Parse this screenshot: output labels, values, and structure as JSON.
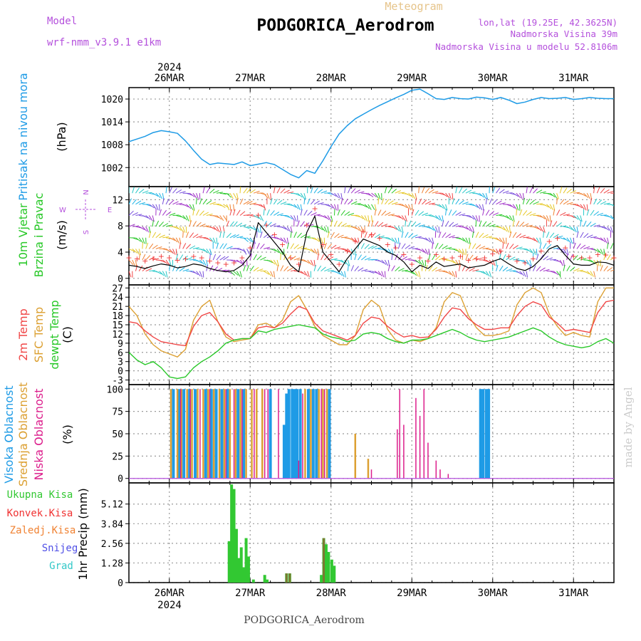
{
  "header": {
    "title_top": "Meteogram",
    "station": "PODGORICA_Aerodrom",
    "model_label": "Model",
    "model_name": "wrf-nmm_v3.9.1 e1km",
    "lonlat": "lon,lat (19.25E, 42.3625N)",
    "altitude": "Nadmorska Visina 39m",
    "model_altitude": "Nadmorska Visina u modelu 52.8106m",
    "watermark": "made by Angel",
    "footer_station": "PODGORICA_Aerodrom"
  },
  "colors": {
    "pressure": "#1e9be6",
    "temp2m": "#f04646",
    "sfc": "#dca032",
    "dewpt": "#28c828",
    "high_cloud": "#1e9be6",
    "mid_cloud": "#dca032",
    "low_cloud": "#dc1e8c",
    "total_precip": "#32c832",
    "conv_precip": "#f03232",
    "strat_precip": "#f08232",
    "snow": "#5050e6",
    "hail": "#32c8c8",
    "wind_label": "#28c828",
    "compass": "#b450dc"
  },
  "chart_data": [
    {
      "type": "line",
      "panel": "pressure",
      "ylabel": [
        "Pritisak na nivou mora",
        "(hPa)"
      ],
      "ylim": [
        997,
        1023
      ],
      "yticks": [
        1002,
        1008,
        1014,
        1020
      ],
      "x_unit": "days from 26MAR 00 UTC",
      "series": [
        {
          "x": [
            -0.5,
            -0.4,
            -0.3,
            -0.2,
            -0.1,
            0.0,
            0.1,
            0.2,
            0.3,
            0.4,
            0.5,
            0.6,
            0.7,
            0.8,
            0.9,
            1.0,
            1.1,
            1.2,
            1.3,
            1.4,
            1.5,
            1.6,
            1.7,
            1.8,
            1.9,
            2.0,
            2.1,
            2.2,
            2.3,
            2.4,
            2.5,
            2.6,
            2.7,
            2.8,
            2.9,
            3.0,
            3.1,
            3.2,
            3.3,
            3.4,
            3.5,
            3.6,
            3.7,
            3.8,
            3.9,
            4.0,
            4.1,
            4.2,
            4.3,
            4.4,
            4.5,
            4.6,
            4.7,
            4.8,
            4.9,
            5.0,
            5.1,
            5.2,
            5.3,
            5.4,
            5.5
          ],
          "values": [
            1008.8,
            1009.5,
            1010.2,
            1011.2,
            1011.7,
            1011.4,
            1011.0,
            1009.0,
            1006.5,
            1004.2,
            1002.8,
            1003.2,
            1003.0,
            1002.8,
            1003.5,
            1002.5,
            1002.9,
            1003.3,
            1002.8,
            1001.5,
            1000.2,
            999.3,
            1001.2,
            1000.5,
            1003.8,
            1007.5,
            1010.8,
            1013.0,
            1014.8,
            1016.0,
            1017.2,
            1018.3,
            1019.3,
            1020.3,
            1021.2,
            1022.3,
            1022.6,
            1021.4,
            1020.1,
            1019.9,
            1020.4,
            1020.1,
            1020.0,
            1020.5,
            1020.3,
            1019.9,
            1020.4,
            1019.7,
            1018.8,
            1019.2,
            1019.9,
            1020.4,
            1020.1,
            1020.2,
            1020.4,
            1019.9,
            1020.1,
            1020.4,
            1020.2,
            1020.1,
            1020.1
          ]
        }
      ]
    },
    {
      "type": "line",
      "panel": "wind",
      "ylabel": [
        "10m Vjetar",
        "Brzina i Pravac",
        "(m/s)"
      ],
      "compass": {
        "n": "N",
        "s": "S",
        "w": "W",
        "e": "E"
      },
      "ylim": [
        -1,
        14
      ],
      "yticks": [
        0,
        4,
        8,
        12
      ],
      "series": [
        {
          "name": "speed",
          "x": [
            -0.5,
            -0.4,
            -0.3,
            -0.2,
            -0.1,
            0.0,
            0.1,
            0.2,
            0.3,
            0.4,
            0.5,
            0.6,
            0.7,
            0.8,
            0.9,
            1.0,
            1.1,
            1.2,
            1.3,
            1.4,
            1.5,
            1.6,
            1.7,
            1.8,
            1.9,
            2.0,
            2.1,
            2.2,
            2.3,
            2.4,
            2.5,
            2.6,
            2.7,
            2.8,
            2.9,
            3.0,
            3.1,
            3.2,
            3.3,
            3.4,
            3.5,
            3.6,
            3.7,
            3.8,
            3.9,
            4.0,
            4.1,
            4.2,
            4.3,
            4.4,
            4.5,
            4.6,
            4.7,
            4.8,
            4.9,
            5.0,
            5.1,
            5.2,
            5.3,
            5.4,
            5.5
          ],
          "values": [
            2.0,
            1.8,
            1.5,
            1.9,
            2.2,
            2.0,
            1.6,
            1.8,
            2.2,
            2.0,
            1.5,
            1.2,
            1.0,
            1.2,
            2.0,
            3.5,
            8.5,
            7.0,
            5.5,
            4.0,
            2.0,
            1.0,
            7.0,
            9.5,
            4.0,
            2.5,
            1.0,
            3.0,
            4.5,
            6.0,
            5.5,
            5.0,
            4.0,
            3.5,
            2.5,
            1.0,
            2.0,
            1.5,
            2.5,
            1.8,
            2.0,
            2.2,
            1.6,
            1.8,
            2.0,
            2.6,
            3.0,
            2.2,
            1.5,
            1.2,
            1.8,
            3.0,
            4.5,
            5.0,
            3.5,
            2.2,
            2.0,
            2.0,
            2.5,
            2.4,
            2.0
          ]
        }
      ]
    },
    {
      "type": "line",
      "panel": "temperature",
      "ylabel": [
        "2m Temp",
        "SFC Temp",
        "dewpt Temp",
        "(C)"
      ],
      "ylim": [
        -4.5,
        28
      ],
      "yticks": [
        -3,
        0,
        3,
        6,
        9,
        12,
        15,
        18,
        21,
        24,
        27
      ],
      "series": [
        {
          "name": "2m Temp",
          "x": [
            -0.5,
            -0.4,
            -0.3,
            -0.2,
            -0.1,
            0.0,
            0.1,
            0.2,
            0.3,
            0.4,
            0.5,
            0.6,
            0.7,
            0.8,
            0.9,
            1.0,
            1.1,
            1.2,
            1.3,
            1.4,
            1.5,
            1.6,
            1.7,
            1.8,
            1.9,
            2.0,
            2.1,
            2.2,
            2.3,
            2.4,
            2.5,
            2.6,
            2.7,
            2.8,
            2.9,
            3.0,
            3.1,
            3.2,
            3.3,
            3.4,
            3.5,
            3.6,
            3.7,
            3.8,
            3.9,
            4.0,
            4.1,
            4.2,
            4.3,
            4.4,
            4.5,
            4.6,
            4.7,
            4.8,
            4.9,
            5.0,
            5.1,
            5.2,
            5.3,
            5.4,
            5.5
          ],
          "values": [
            16.0,
            15.5,
            13.0,
            11.0,
            9.5,
            9.0,
            8.5,
            8.2,
            14.5,
            18.0,
            19.0,
            16.0,
            12.0,
            10.0,
            10.5,
            10.5,
            14.0,
            14.5,
            14.0,
            15.5,
            18.5,
            21.0,
            20.0,
            15.5,
            13.0,
            12.0,
            11.0,
            10.0,
            11.5,
            15.5,
            17.5,
            17.0,
            14.5,
            12.5,
            11.0,
            11.5,
            10.8,
            11.0,
            13.5,
            17.5,
            20.5,
            20.0,
            17.0,
            15.0,
            13.5,
            13.5,
            14.0,
            14.0,
            18.0,
            21.0,
            22.5,
            21.5,
            17.5,
            15.5,
            13.0,
            13.5,
            13.0,
            12.5,
            19.0,
            22.5,
            23.0
          ]
        },
        {
          "name": "SFC Temp",
          "x": [
            -0.5,
            -0.4,
            -0.3,
            -0.2,
            -0.1,
            0.0,
            0.1,
            0.2,
            0.3,
            0.4,
            0.5,
            0.6,
            0.7,
            0.8,
            0.9,
            1.0,
            1.1,
            1.2,
            1.3,
            1.4,
            1.5,
            1.6,
            1.7,
            1.8,
            1.9,
            2.0,
            2.1,
            2.2,
            2.3,
            2.4,
            2.5,
            2.6,
            2.7,
            2.8,
            2.9,
            3.0,
            3.1,
            3.2,
            3.3,
            3.4,
            3.5,
            3.6,
            3.7,
            3.8,
            3.9,
            4.0,
            4.1,
            4.2,
            4.3,
            4.4,
            4.5,
            4.6,
            4.7,
            4.8,
            4.9,
            5.0,
            5.1,
            5.2,
            5.3,
            5.4,
            5.5
          ],
          "values": [
            21.0,
            18.0,
            12.0,
            8.5,
            6.5,
            5.5,
            4.5,
            7.0,
            16.5,
            21.0,
            23.0,
            16.0,
            11.0,
            9.5,
            10.0,
            10.5,
            15.0,
            15.5,
            14.0,
            16.5,
            22.5,
            24.5,
            20.0,
            14.5,
            11.5,
            10.0,
            8.5,
            8.5,
            11.5,
            20.0,
            23.0,
            21.0,
            13.5,
            10.0,
            9.0,
            10.0,
            9.5,
            10.5,
            14.0,
            22.5,
            25.5,
            24.5,
            18.0,
            14.0,
            11.5,
            11.5,
            12.0,
            13.0,
            21.5,
            25.5,
            27.0,
            25.5,
            18.5,
            14.5,
            11.5,
            12.5,
            11.5,
            11.0,
            22.5,
            27.0,
            27.0
          ]
        },
        {
          "name": "dewpt Temp",
          "x": [
            -0.5,
            -0.4,
            -0.3,
            -0.2,
            -0.1,
            0.0,
            0.1,
            0.2,
            0.3,
            0.4,
            0.5,
            0.6,
            0.7,
            0.8,
            0.9,
            1.0,
            1.1,
            1.2,
            1.3,
            1.4,
            1.5,
            1.6,
            1.7,
            1.8,
            1.9,
            2.0,
            2.1,
            2.2,
            2.3,
            2.4,
            2.5,
            2.6,
            2.7,
            2.8,
            2.9,
            3.0,
            3.1,
            3.2,
            3.3,
            3.4,
            3.5,
            3.6,
            3.7,
            3.8,
            3.9,
            4.0,
            4.1,
            4.2,
            4.3,
            4.4,
            4.5,
            4.6,
            4.7,
            4.8,
            4.9,
            5.0,
            5.1,
            5.2,
            5.3,
            5.4,
            5.5
          ],
          "values": [
            6.0,
            3.5,
            2.0,
            3.0,
            1.0,
            -2.0,
            -2.5,
            -2.0,
            1.0,
            3.0,
            4.5,
            6.5,
            9.0,
            10.0,
            10.5,
            10.5,
            13.0,
            12.5,
            13.5,
            14.0,
            14.5,
            15.0,
            14.5,
            14.0,
            12.0,
            11.0,
            10.5,
            9.5,
            10.0,
            12.0,
            12.5,
            12.0,
            10.5,
            9.5,
            9.0,
            10.0,
            10.0,
            10.5,
            11.5,
            12.5,
            13.5,
            12.5,
            11.0,
            10.0,
            9.5,
            10.0,
            10.5,
            11.0,
            12.0,
            13.0,
            14.0,
            13.0,
            11.0,
            9.5,
            8.5,
            8.0,
            7.5,
            8.0,
            9.5,
            10.5,
            9.0
          ]
        }
      ]
    },
    {
      "type": "bar",
      "panel": "cloud",
      "ylabel": [
        "Visoka Oblacnost",
        "Srednja Oblacnost",
        "Niska Oblacnost",
        "(%)"
      ],
      "ylim": [
        -5,
        105
      ],
      "yticks": [
        0,
        25,
        50,
        75,
        100
      ],
      "series": [
        {
          "name": "Visoka Oblacnost",
          "x": [
            0.05,
            0.12,
            0.18,
            0.25,
            0.32,
            0.45,
            0.52,
            0.58,
            0.65,
            0.72,
            0.85,
            0.92,
            1.25,
            1.42,
            1.45,
            1.48,
            1.52,
            1.55,
            1.58,
            1.62,
            1.72,
            1.78,
            1.82,
            1.98,
            3.85,
            3.88,
            3.92,
            3.95
          ],
          "values": [
            100,
            100,
            100,
            100,
            100,
            100,
            100,
            100,
            100,
            100,
            100,
            100,
            100,
            60,
            95,
            100,
            100,
            100,
            100,
            100,
            100,
            100,
            100,
            100,
            100,
            100,
            100,
            100
          ]
        },
        {
          "name": "Srednja Oblacnost",
          "x": [
            0.02,
            0.1,
            0.15,
            0.22,
            0.28,
            0.35,
            0.42,
            0.48,
            0.55,
            0.62,
            0.68,
            0.75,
            0.82,
            0.88,
            0.95,
            1.02,
            1.08,
            1.15,
            1.68,
            1.75,
            1.85,
            1.9,
            1.95,
            2.3,
            2.46
          ],
          "values": [
            100,
            100,
            100,
            100,
            100,
            100,
            100,
            100,
            100,
            100,
            100,
            100,
            100,
            100,
            100,
            100,
            100,
            100,
            100,
            100,
            100,
            100,
            100,
            50,
            22
          ]
        },
        {
          "name": "Niska Oblacnost",
          "x": [
            0.14,
            0.26,
            0.38,
            0.5,
            0.7,
            0.8,
            0.9,
            1.05,
            1.18,
            1.22,
            1.35,
            1.6,
            1.65,
            1.88,
            1.92,
            2.5,
            2.82,
            2.85,
            2.9,
            3.05,
            3.1,
            3.15,
            3.2,
            3.3,
            3.35,
            3.45
          ],
          "values": [
            100,
            100,
            100,
            100,
            100,
            100,
            100,
            100,
            100,
            100,
            100,
            20,
            95,
            100,
            100,
            10,
            55,
            100,
            60,
            90,
            70,
            100,
            40,
            20,
            10,
            5
          ]
        }
      ]
    },
    {
      "type": "bar",
      "panel": "precip",
      "ylabel": [
        "1hr Precip (mm)"
      ],
      "legend": [
        "Ukupna Kisa",
        "Konvek.Kisa",
        "Zaledj.Kisa",
        "Snijeg",
        "Grad"
      ],
      "ylim": [
        0,
        6.5
      ],
      "yticks": [
        0,
        1.28,
        2.56,
        3.84,
        5.12
      ],
      "series": [
        {
          "name": "Ukupna Kisa",
          "x": [
            0.74,
            0.77,
            0.8,
            0.83,
            0.86,
            0.89,
            0.92,
            0.95,
            0.98,
            1.04,
            1.18,
            1.21,
            1.45,
            1.49,
            1.88,
            1.91,
            1.94,
            1.97,
            2.01,
            2.04
          ],
          "values": [
            2.7,
            6.4,
            6.1,
            3.5,
            1.6,
            2.3,
            1.0,
            2.9,
            1.7,
            0.2,
            0.5,
            0.2,
            0.6,
            0.6,
            0.5,
            2.9,
            2.5,
            2.0,
            1.5,
            1.1
          ]
        },
        {
          "name": "Konvek.Kisa",
          "x": [
            1.45,
            1.49,
            1.91
          ],
          "values": [
            0.6,
            0.6,
            2.9
          ]
        }
      ]
    }
  ],
  "axes": {
    "x_range": [
      -0.5,
      5.5
    ],
    "day_labels": [
      "26MAR",
      "27MAR",
      "28MAR",
      "29MAR",
      "30MAR",
      "31MAR"
    ],
    "year_label": "2024"
  }
}
